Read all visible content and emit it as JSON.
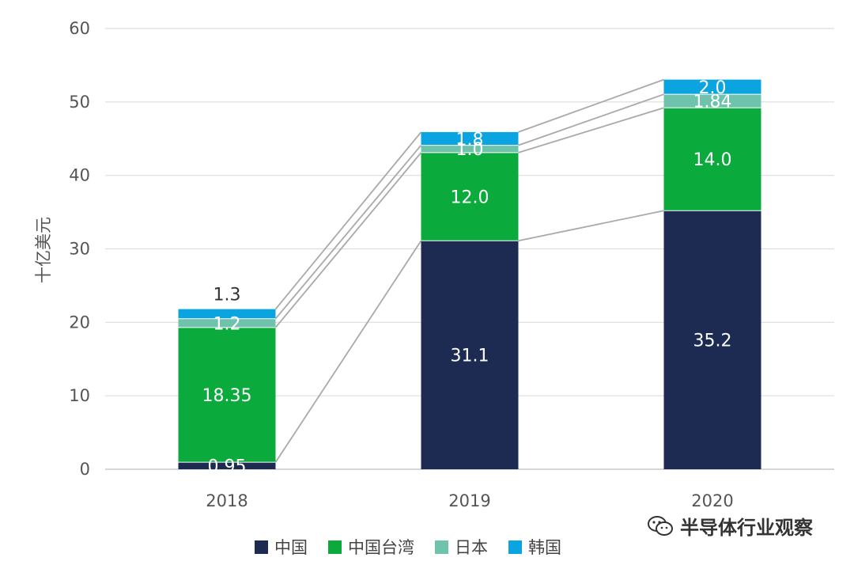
{
  "chart_data": {
    "type": "bar",
    "stacked": true,
    "ylabel": "十亿美元",
    "ylim": [
      0,
      60
    ],
    "yticks": [
      "0",
      "10",
      "20",
      "30",
      "40",
      "50",
      "60"
    ],
    "categories": [
      "2018",
      "2019",
      "2020"
    ],
    "grid": true,
    "legend_placement": "bottom",
    "connector_lines": true,
    "series": [
      {
        "name": "中国",
        "color": "#1d2b53",
        "values": [
          0.95,
          31.1,
          35.2
        ],
        "labels": [
          "0.95",
          "31.1",
          "35.2"
        ]
      },
      {
        "name": "中国台湾",
        "color": "#0aab3c",
        "values": [
          18.35,
          12.0,
          14.0
        ],
        "labels": [
          "18.35",
          "12.0",
          "14.0"
        ]
      },
      {
        "name": "日本",
        "color": "#6fc3ad",
        "values": [
          1.2,
          1.0,
          1.84
        ],
        "labels": [
          "1.2",
          "1.0",
          "1.84"
        ]
      },
      {
        "name": "韩国",
        "color": "#0aa4e0",
        "values": [
          1.3,
          1.8,
          2.0
        ],
        "labels": [
          "1.3",
          "1.8",
          "2.0"
        ]
      }
    ]
  },
  "watermark": {
    "text": "半导体行业观察"
  }
}
